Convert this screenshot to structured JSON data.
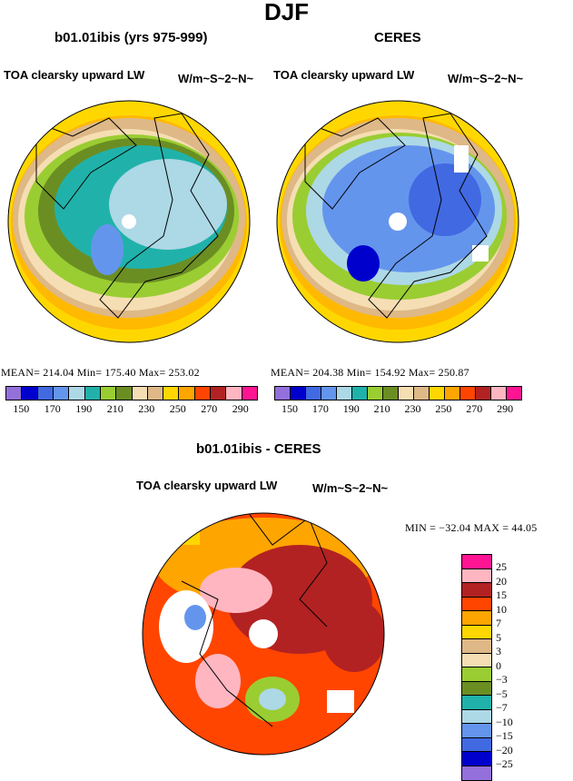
{
  "title": "DJF",
  "panels": {
    "left": {
      "title": "b01.01ibis (yrs 975-999)",
      "variable": "TOA clearsky upward LW",
      "units": "W/m~S~2~N~",
      "stats": "MEAN=  214.04   Min=  175.40   Max=  253.02"
    },
    "right": {
      "title": "CERES",
      "variable": "TOA clearsky upward LW",
      "units": "W/m~S~2~N~",
      "stats": "MEAN=  204.38   Min=  154.92   Max=  250.87"
    },
    "diff": {
      "title": "b01.01ibis - CERES",
      "variable": "TOA clearsky upward LW",
      "units": "W/m~S~2~N~",
      "stats": "MIN = −32.04  MAX =  44.05"
    }
  },
  "colorbar_abs": {
    "colors": [
      "#9370db",
      "#0000cd",
      "#4169e1",
      "#6495ed",
      "#add8e6",
      "#20b2aa",
      "#9acd32",
      "#6b8e23",
      "#f5deb3",
      "#deb887",
      "#ffd700",
      "#ffa500",
      "#ff4500",
      "#b22222",
      "#ffb6c1",
      "#ff1493"
    ],
    "labels": [
      "150",
      "170",
      "190",
      "210",
      "230",
      "250",
      "270",
      "290"
    ]
  },
  "colorbar_diff": {
    "colors": [
      "#ff1493",
      "#ffb6c1",
      "#b22222",
      "#ff4500",
      "#ffa500",
      "#ffd700",
      "#deb887",
      "#f5deb3",
      "#9acd32",
      "#6b8e23",
      "#20b2aa",
      "#add8e6",
      "#6495ed",
      "#4169e1",
      "#0000cd",
      "#9370db"
    ],
    "labels": [
      "25",
      "20",
      "15",
      "10",
      "7",
      "5",
      "3",
      "0",
      "−3",
      "−5",
      "−7",
      "−10",
      "−15",
      "−20",
      "−25"
    ]
  }
}
